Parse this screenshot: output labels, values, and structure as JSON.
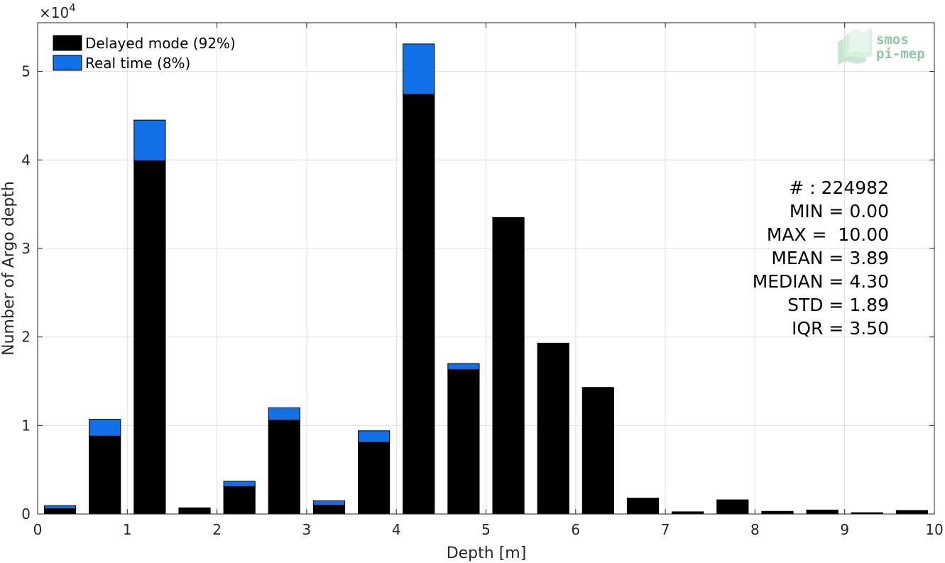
{
  "chart_data": {
    "type": "bar",
    "stacked": true,
    "xlabel": "Depth [m]",
    "ylabel": "Number of Argo depth",
    "y_multiplier_label": "×10",
    "y_multiplier_exponent": "4",
    "xlim": [
      0,
      10
    ],
    "ylim": [
      0,
      55500
    ],
    "x_ticks": [
      "0",
      "1",
      "2",
      "3",
      "4",
      "5",
      "6",
      "7",
      "8",
      "9",
      "10"
    ],
    "y_ticks": [
      "0",
      "1",
      "2",
      "3",
      "4",
      "5"
    ],
    "y_tick_values": [
      0,
      10000,
      20000,
      30000,
      40000,
      50000
    ],
    "grid": true,
    "bin_centers": [
      0.25,
      0.75,
      1.25,
      1.75,
      2.25,
      2.75,
      3.25,
      3.75,
      4.25,
      4.75,
      5.25,
      5.75,
      6.25,
      6.75,
      7.25,
      7.75,
      8.25,
      8.75,
      9.25,
      9.75
    ],
    "bin_width": 0.35,
    "series": [
      {
        "name": "Delayed mode (92%)",
        "color": "#000000",
        "values": [
          600,
          8800,
          39900,
          700,
          3100,
          10600,
          1000,
          8100,
          47400,
          16300,
          33500,
          19300,
          14300,
          1800,
          250,
          1600,
          300,
          450,
          150,
          400
        ]
      },
      {
        "name": "Real time (8%)",
        "color": "#1170e8",
        "values": [
          350,
          1900,
          4600,
          0,
          600,
          1400,
          500,
          1300,
          5700,
          700,
          0,
          0,
          0,
          0,
          0,
          0,
          0,
          0,
          0,
          0
        ]
      }
    ],
    "legend_position": "top-left",
    "stats": [
      "# : 224982",
      "MIN = 0.00",
      "MAX =  10.00",
      "MEAN = 3.89",
      "MEDIAN = 4.30",
      "STD = 1.89",
      "IQR = 3.50"
    ]
  },
  "logo": {
    "line1": "smos",
    "line2": "pi-mep",
    "color": "#8cc9a0"
  }
}
